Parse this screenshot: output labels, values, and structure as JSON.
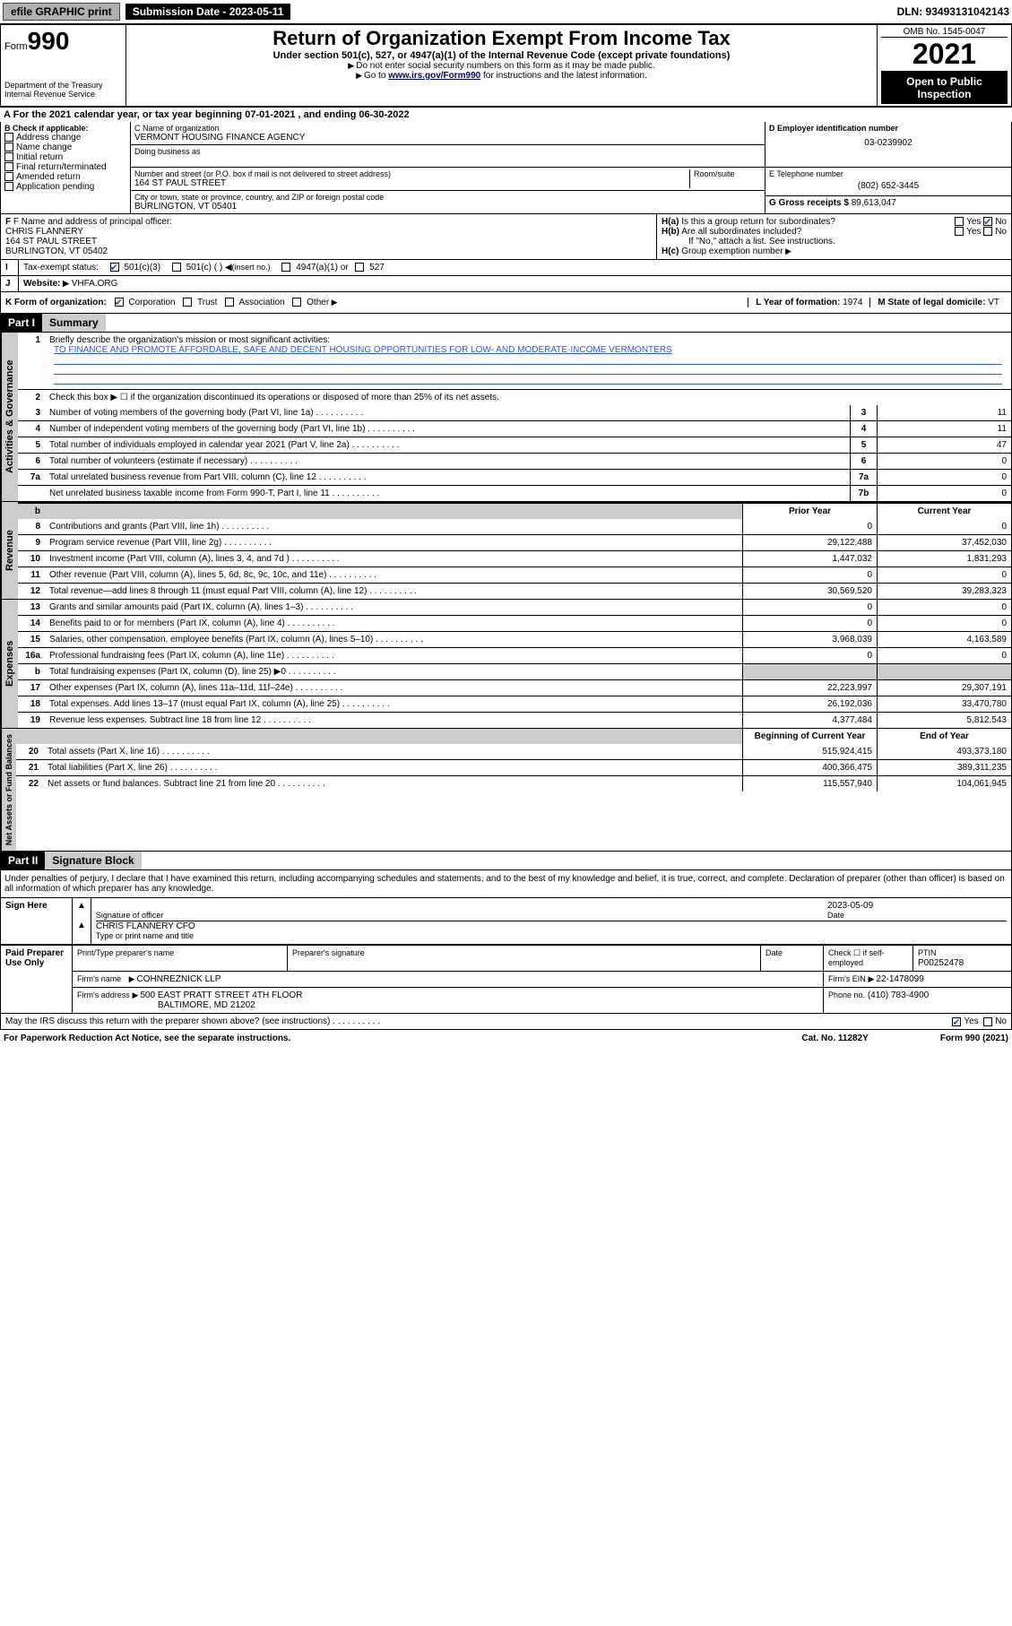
{
  "topbar": {
    "efile": "efile GRAPHIC print",
    "submission_label": "Submission Date - 2023-05-11",
    "dln": "DLN: 93493131042143"
  },
  "header": {
    "form_prefix": "Form",
    "form_num": "990",
    "dept": "Department of the Treasury",
    "irs": "Internal Revenue Service",
    "title": "Return of Organization Exempt From Income Tax",
    "sub1": "Under section 501(c), 527, or 4947(a)(1) of the Internal Revenue Code (except private foundations)",
    "sub2": "Do not enter social security numbers on this form as it may be made public.",
    "sub3_pre": "Go to ",
    "sub3_link": "www.irs.gov/Form990",
    "sub3_post": " for instructions and the latest information.",
    "omb": "OMB No. 1545-0047",
    "year": "2021",
    "inspect": "Open to Public Inspection"
  },
  "period": {
    "text_a": "For the 2021 calendar year, or tax year beginning ",
    "begin": "07-01-2021",
    "text_b": " , and ending ",
    "end": "06-30-2022"
  },
  "box_b": {
    "hdr": "B Check if applicable:",
    "items": [
      "Address change",
      "Name change",
      "Initial return",
      "Final return/terminated",
      "Amended return",
      "Application pending"
    ]
  },
  "box_c": {
    "label": "C Name of organization",
    "name": "VERMONT HOUSING FINANCE AGENCY",
    "dba_label": "Doing business as",
    "addr_label": "Number and street (or P.O. box if mail is not delivered to street address)",
    "room_label": "Room/suite",
    "addr": "164 ST PAUL STREET",
    "city_label": "City or town, state or province, country, and ZIP or foreign postal code",
    "city": "BURLINGTON, VT  05401"
  },
  "box_d": {
    "label": "D Employer identification number",
    "val": "03-0239902"
  },
  "box_e": {
    "label": "E Telephone number",
    "val": "(802) 652-3445"
  },
  "box_g": {
    "label": "G Gross receipts $",
    "val": "89,613,047"
  },
  "box_f": {
    "label": "F Name and address of principal officer:",
    "name": "CHRIS FLANNERY",
    "addr": "164 ST PAUL STREET",
    "city": "BURLINGTON, VT  05402"
  },
  "box_h": {
    "a": "Is this a group return for subordinates?",
    "b": "Are all subordinates included?",
    "note": "If \"No,\" attach a list. See instructions.",
    "c": "Group exemption number"
  },
  "tax_exempt": {
    "label": "Tax-exempt status:",
    "opt1": "501(c)(3)",
    "opt2": "501(c) (  )",
    "opt2b": "(insert no.)",
    "opt3": "4947(a)(1) or",
    "opt4": "527"
  },
  "website": {
    "label": "Website:",
    "val": "VHFA.ORG"
  },
  "line_k": {
    "label": "K Form of organization:",
    "opts": [
      "Corporation",
      "Trust",
      "Association",
      "Other"
    ],
    "year_label": "L Year of formation:",
    "year": "1974",
    "domicile_label": "M State of legal domicile:",
    "domicile": "VT"
  },
  "part1": {
    "hdr": "Part I",
    "title": "Summary",
    "line1_label": "Briefly describe the organization's mission or most significant activities:",
    "mission": "TO FINANCE AND PROMOTE AFFORDABLE, SAFE AND DECENT HOUSING OPPORTUNITIES FOR LOW- AND MODERATE-INCOME VERMONTERS",
    "line2": "Check this box ▶ ☐  if the organization discontinued its operations or disposed of more than 25% of its net assets."
  },
  "side_labels": {
    "gov": "Activities & Governance",
    "rev": "Revenue",
    "exp": "Expenses",
    "net": "Net Assets or Fund Balances"
  },
  "col_headers": {
    "prior": "Prior Year",
    "current": "Current Year",
    "begin": "Beginning of Current Year",
    "end": "End of Year"
  },
  "gov_lines": [
    {
      "n": "3",
      "t": "Number of voting members of the governing body (Part VI, line 1a)",
      "box": "3",
      "v": "11"
    },
    {
      "n": "4",
      "t": "Number of independent voting members of the governing body (Part VI, line 1b)",
      "box": "4",
      "v": "11"
    },
    {
      "n": "5",
      "t": "Total number of individuals employed in calendar year 2021 (Part V, line 2a)",
      "box": "5",
      "v": "47"
    },
    {
      "n": "6",
      "t": "Total number of volunteers (estimate if necessary)",
      "box": "6",
      "v": "0"
    },
    {
      "n": "7a",
      "t": "Total unrelated business revenue from Part VIII, column (C), line 12",
      "box": "7a",
      "v": "0"
    },
    {
      "n": "",
      "t": "Net unrelated business taxable income from Form 990-T, Part I, line 11",
      "box": "7b",
      "v": "0"
    }
  ],
  "rev_lines": [
    {
      "n": "8",
      "t": "Contributions and grants (Part VIII, line 1h)",
      "p": "0",
      "c": "0"
    },
    {
      "n": "9",
      "t": "Program service revenue (Part VIII, line 2g)",
      "p": "29,122,488",
      "c": "37,452,030"
    },
    {
      "n": "10",
      "t": "Investment income (Part VIII, column (A), lines 3, 4, and 7d )",
      "p": "1,447,032",
      "c": "1,831,293"
    },
    {
      "n": "11",
      "t": "Other revenue (Part VIII, column (A), lines 5, 6d, 8c, 9c, 10c, and 11e)",
      "p": "0",
      "c": "0"
    },
    {
      "n": "12",
      "t": "Total revenue—add lines 8 through 11 (must equal Part VIII, column (A), line 12)",
      "p": "30,569,520",
      "c": "39,283,323"
    }
  ],
  "exp_lines": [
    {
      "n": "13",
      "t": "Grants and similar amounts paid (Part IX, column (A), lines 1–3)",
      "p": "0",
      "c": "0"
    },
    {
      "n": "14",
      "t": "Benefits paid to or for members (Part IX, column (A), line 4)",
      "p": "0",
      "c": "0"
    },
    {
      "n": "15",
      "t": "Salaries, other compensation, employee benefits (Part IX, column (A), lines 5–10)",
      "p": "3,968,039",
      "c": "4,163,589"
    },
    {
      "n": "16a",
      "t": "Professional fundraising fees (Part IX, column (A), line 11e)",
      "p": "0",
      "c": "0"
    },
    {
      "n": "b",
      "t": "Total fundraising expenses (Part IX, column (D), line 25) ▶0",
      "p": "",
      "c": "",
      "shade": true
    },
    {
      "n": "17",
      "t": "Other expenses (Part IX, column (A), lines 11a–11d, 11f–24e)",
      "p": "22,223,997",
      "c": "29,307,191"
    },
    {
      "n": "18",
      "t": "Total expenses. Add lines 13–17 (must equal Part IX, column (A), line 25)",
      "p": "26,192,036",
      "c": "33,470,780"
    },
    {
      "n": "19",
      "t": "Revenue less expenses. Subtract line 18 from line 12",
      "p": "4,377,484",
      "c": "5,812,543"
    }
  ],
  "net_lines": [
    {
      "n": "20",
      "t": "Total assets (Part X, line 16)",
      "p": "515,924,415",
      "c": "493,373,180"
    },
    {
      "n": "21",
      "t": "Total liabilities (Part X, line 26)",
      "p": "400,366,475",
      "c": "389,311,235"
    },
    {
      "n": "22",
      "t": "Net assets or fund balances. Subtract line 21 from line 20",
      "p": "115,557,940",
      "c": "104,061,945"
    }
  ],
  "part2": {
    "hdr": "Part II",
    "title": "Signature Block"
  },
  "penalties": "Under penalties of perjury, I declare that I have examined this return, including accompanying schedules and statements, and to the best of my knowledge and belief, it is true, correct, and complete. Declaration of preparer (other than officer) is based on all information of which preparer has any knowledge.",
  "sign": {
    "here": "Sign Here",
    "sig_officer": "Signature of officer",
    "date": "Date",
    "date_val": "2023-05-09",
    "name": "CHRIS FLANNERY CFO",
    "name_label": "Type or print name and title"
  },
  "paid": {
    "title": "Paid Preparer Use Only",
    "c1": "Print/Type preparer's name",
    "c2": "Preparer's signature",
    "c3": "Date",
    "c4a": "Check ☐ if self-employed",
    "c4b_label": "PTIN",
    "c4b": "P00252478",
    "firm_label": "Firm's name",
    "firm": "COHNREZNICK LLP",
    "ein_label": "Firm's EIN",
    "ein": "22-1478099",
    "addr_label": "Firm's address",
    "addr1": "500 EAST PRATT STREET 4TH FLOOR",
    "addr2": "BALTIMORE, MD  21202",
    "phone_label": "Phone no.",
    "phone": "(410) 783-4900"
  },
  "discuss": "May the IRS discuss this return with the preparer shown above? (see instructions)",
  "footer": {
    "left": "For Paperwork Reduction Act Notice, see the separate instructions.",
    "mid": "Cat. No. 11282Y",
    "right": "Form 990 (2021)"
  }
}
